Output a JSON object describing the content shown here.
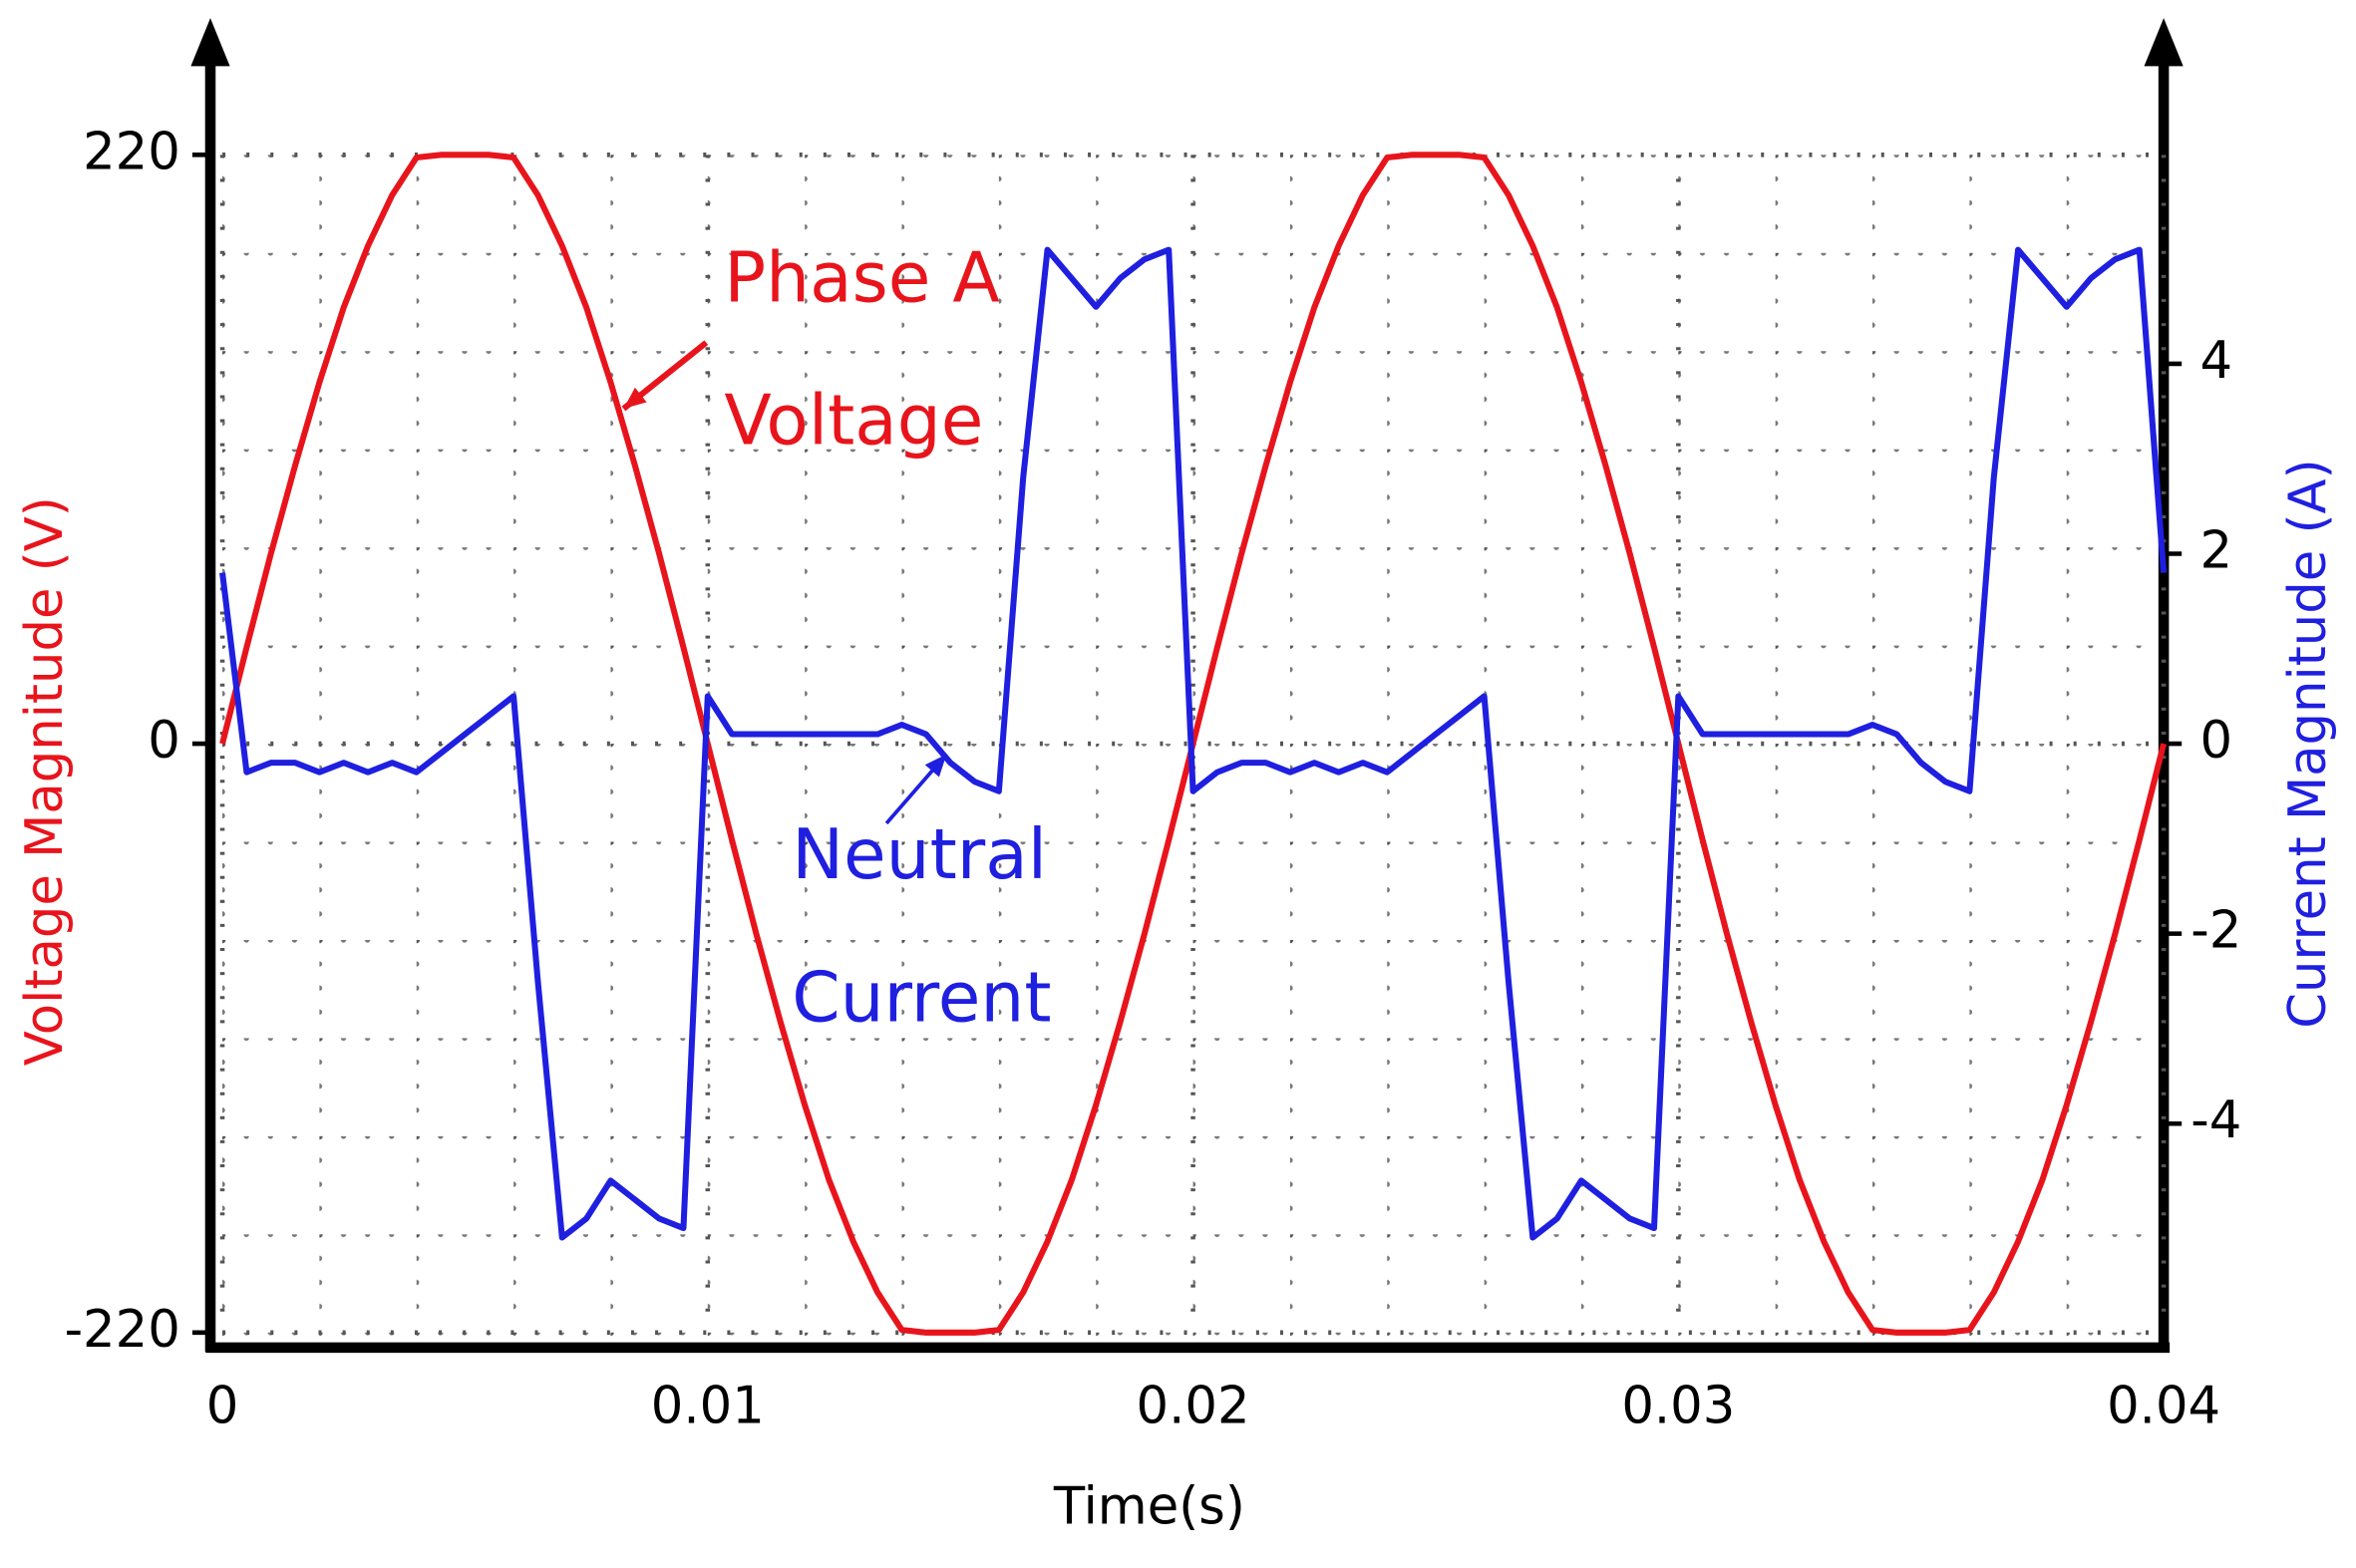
{
  "chart_data": {
    "type": "line",
    "x_label": "Time(s)",
    "y_label": "Voltage Magnitude (V)",
    "y2_label": "Current Magnitude (A)",
    "y_label_color": "#e8141c",
    "y2_label_color": "#1f1fe0",
    "grid": true,
    "xlim": [
      0,
      0.04
    ],
    "xticks": [
      0,
      0.01,
      0.02,
      0.03,
      0.04
    ],
    "ylim": [
      -220,
      220
    ],
    "yticks": [
      -220,
      0,
      220
    ],
    "y2lim": [
      -6.2,
      6.2
    ],
    "y2ticks": [
      -4,
      -2,
      0,
      2,
      4
    ],
    "x": [
      0,
      0.0005,
      0.001,
      0.0015,
      0.002,
      0.0025,
      0.003,
      0.0035,
      0.004,
      0.0045,
      0.005,
      0.0055,
      0.006,
      0.0065,
      0.007,
      0.0075,
      0.008,
      0.0085,
      0.009,
      0.0095,
      0.01,
      0.0105,
      0.011,
      0.0115,
      0.012,
      0.0125,
      0.013,
      0.0135,
      0.014,
      0.0145,
      0.015,
      0.0155,
      0.016,
      0.0165,
      0.017,
      0.0175,
      0.018,
      0.0185,
      0.019,
      0.0195,
      0.02,
      0.0205,
      0.021,
      0.0215,
      0.022,
      0.0225,
      0.023,
      0.0235,
      0.024,
      0.0245,
      0.025,
      0.0255,
      0.026,
      0.0265,
      0.027,
      0.0275,
      0.028,
      0.0285,
      0.029,
      0.0295,
      0.03,
      0.0305,
      0.031,
      0.0315,
      0.032,
      0.0325,
      0.033,
      0.0335,
      0.034,
      0.0345,
      0.035,
      0.0355,
      0.036,
      0.0365,
      0.037,
      0.0375,
      0.038,
      0.0385,
      0.039,
      0.0395,
      0.04
    ],
    "series": [
      {
        "name": "Phase A Voltage",
        "color": "#e8141c",
        "values": [
          0,
          36,
          71,
          104,
          135,
          163,
          186,
          205,
          219,
          220,
          220,
          220,
          219,
          205,
          186,
          163,
          135,
          104,
          71,
          36,
          0,
          -36,
          -71,
          -104,
          -135,
          -163,
          -186,
          -205,
          -219,
          -220,
          -220,
          -220,
          -219,
          -205,
          -186,
          -163,
          -135,
          -104,
          -71,
          -36,
          0,
          36,
          71,
          104,
          135,
          163,
          186,
          205,
          219,
          220,
          220,
          220,
          219,
          205,
          186,
          163,
          135,
          104,
          71,
          36,
          0,
          -36,
          -71,
          -104,
          -135,
          -163,
          -186,
          -205,
          -219,
          -220,
          -220,
          -220,
          -219,
          -205,
          -186,
          -163,
          -135,
          -104,
          -71,
          -36,
          0
        ]
      },
      {
        "name": "Neutral Current",
        "color": "#1f1fe0",
        "axis": "y2",
        "values": [
          1.8,
          -0.3,
          -0.2,
          -0.2,
          -0.3,
          -0.2,
          -0.3,
          -0.2,
          -0.3,
          -0.1,
          0.1,
          0.3,
          0.5,
          -2.5,
          -5.2,
          -5.0,
          -4.6,
          -4.8,
          -5.0,
          -5.1,
          0.5,
          0.1,
          0.1,
          0.1,
          0.1,
          0.1,
          0.1,
          0.1,
          0.2,
          0.1,
          -0.2,
          -0.4,
          -0.5,
          2.8,
          5.2,
          4.9,
          4.6,
          4.9,
          5.1,
          5.2,
          -0.5,
          -0.3,
          -0.2,
          -0.2,
          -0.3,
          -0.2,
          -0.3,
          -0.2,
          -0.3,
          -0.1,
          0.1,
          0.3,
          0.5,
          -2.5,
          -5.2,
          -5.0,
          -4.6,
          -4.8,
          -5.0,
          -5.1,
          0.5,
          0.1,
          0.1,
          0.1,
          0.1,
          0.1,
          0.1,
          0.1,
          0.2,
          0.1,
          -0.2,
          -0.4,
          -0.5,
          2.8,
          5.2,
          4.9,
          4.6,
          4.9,
          5.1,
          5.2,
          1.8
        ]
      }
    ],
    "annotations": [
      {
        "lines": [
          "Phase A",
          "Voltage"
        ],
        "color": "#e8141c"
      },
      {
        "lines": [
          "Neutral",
          "Current"
        ],
        "color": "#1f1fe0"
      }
    ]
  }
}
